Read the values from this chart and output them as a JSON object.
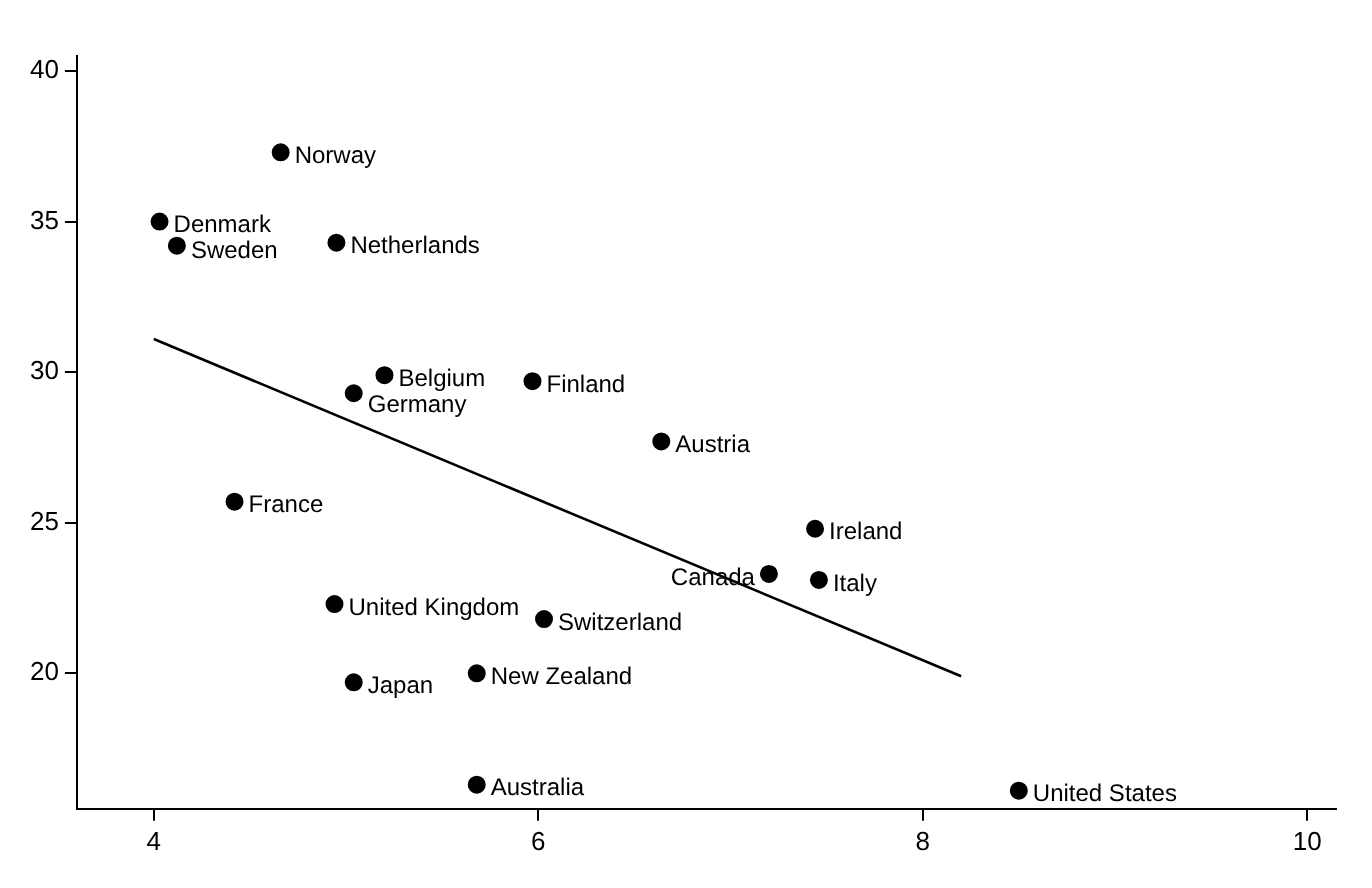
{
  "chart_data": {
    "type": "scatter",
    "marker": "circle",
    "grid": false,
    "legend": false,
    "xlim": [
      3.6,
      10.15
    ],
    "xticks": [
      4,
      6,
      8,
      10
    ],
    "ylim": [
      15.5,
      40.5
    ],
    "yticks": [
      20,
      25,
      30,
      35,
      40
    ],
    "series": [
      {
        "color": "#000000",
        "x": [
          4.66,
          4.03,
          4.12,
          4.95,
          5.2,
          5.04,
          5.97,
          6.64,
          4.42,
          7.44,
          7.2,
          7.46,
          4.94,
          6.03,
          5.68,
          5.04,
          5.68,
          8.5
        ],
        "values": [
          37.3,
          35.0,
          34.2,
          34.3,
          29.9,
          29.3,
          29.7,
          27.7,
          25.7,
          24.8,
          23.3,
          23.1,
          22.3,
          21.8,
          20.0,
          19.7,
          16.3,
          16.1
        ]
      },
      {
        "type": "line",
        "color": "#000000",
        "marker": "none",
        "x": [
          4.0,
          8.2
        ],
        "values": [
          31.1,
          19.9
        ]
      }
    ],
    "annotations": [
      {
        "text": "Norway",
        "x": 4.66,
        "y": 37.3
      },
      {
        "text": "Denmark",
        "x": 4.03,
        "y": 35.0
      },
      {
        "text": "Sweden",
        "x": 4.12,
        "y": 34.2
      },
      {
        "text": "Netherlands",
        "x": 4.95,
        "y": 34.3
      },
      {
        "text": "Belgium",
        "x": 5.2,
        "y": 29.9
      },
      {
        "text": "Germany",
        "x": 5.04,
        "y": 29.3
      },
      {
        "text": "Finland",
        "x": 5.97,
        "y": 29.7
      },
      {
        "text": "Austria",
        "x": 6.64,
        "y": 27.7
      },
      {
        "text": "France",
        "x": 4.42,
        "y": 25.7
      },
      {
        "text": "Ireland",
        "x": 7.44,
        "y": 24.8
      },
      {
        "text": "Canada",
        "x": 7.2,
        "y": 23.3
      },
      {
        "text": "Italy",
        "x": 7.46,
        "y": 23.1
      },
      {
        "text": "United Kingdom",
        "x": 4.94,
        "y": 22.3
      },
      {
        "text": "Switzerland",
        "x": 6.03,
        "y": 21.8
      },
      {
        "text": "New Zealand",
        "x": 5.68,
        "y": 20.0
      },
      {
        "text": "Japan",
        "x": 5.04,
        "y": 19.7
      },
      {
        "text": "Australia",
        "x": 5.68,
        "y": 16.3
      },
      {
        "text": "United States",
        "x": 8.5,
        "y": 16.1
      }
    ]
  }
}
